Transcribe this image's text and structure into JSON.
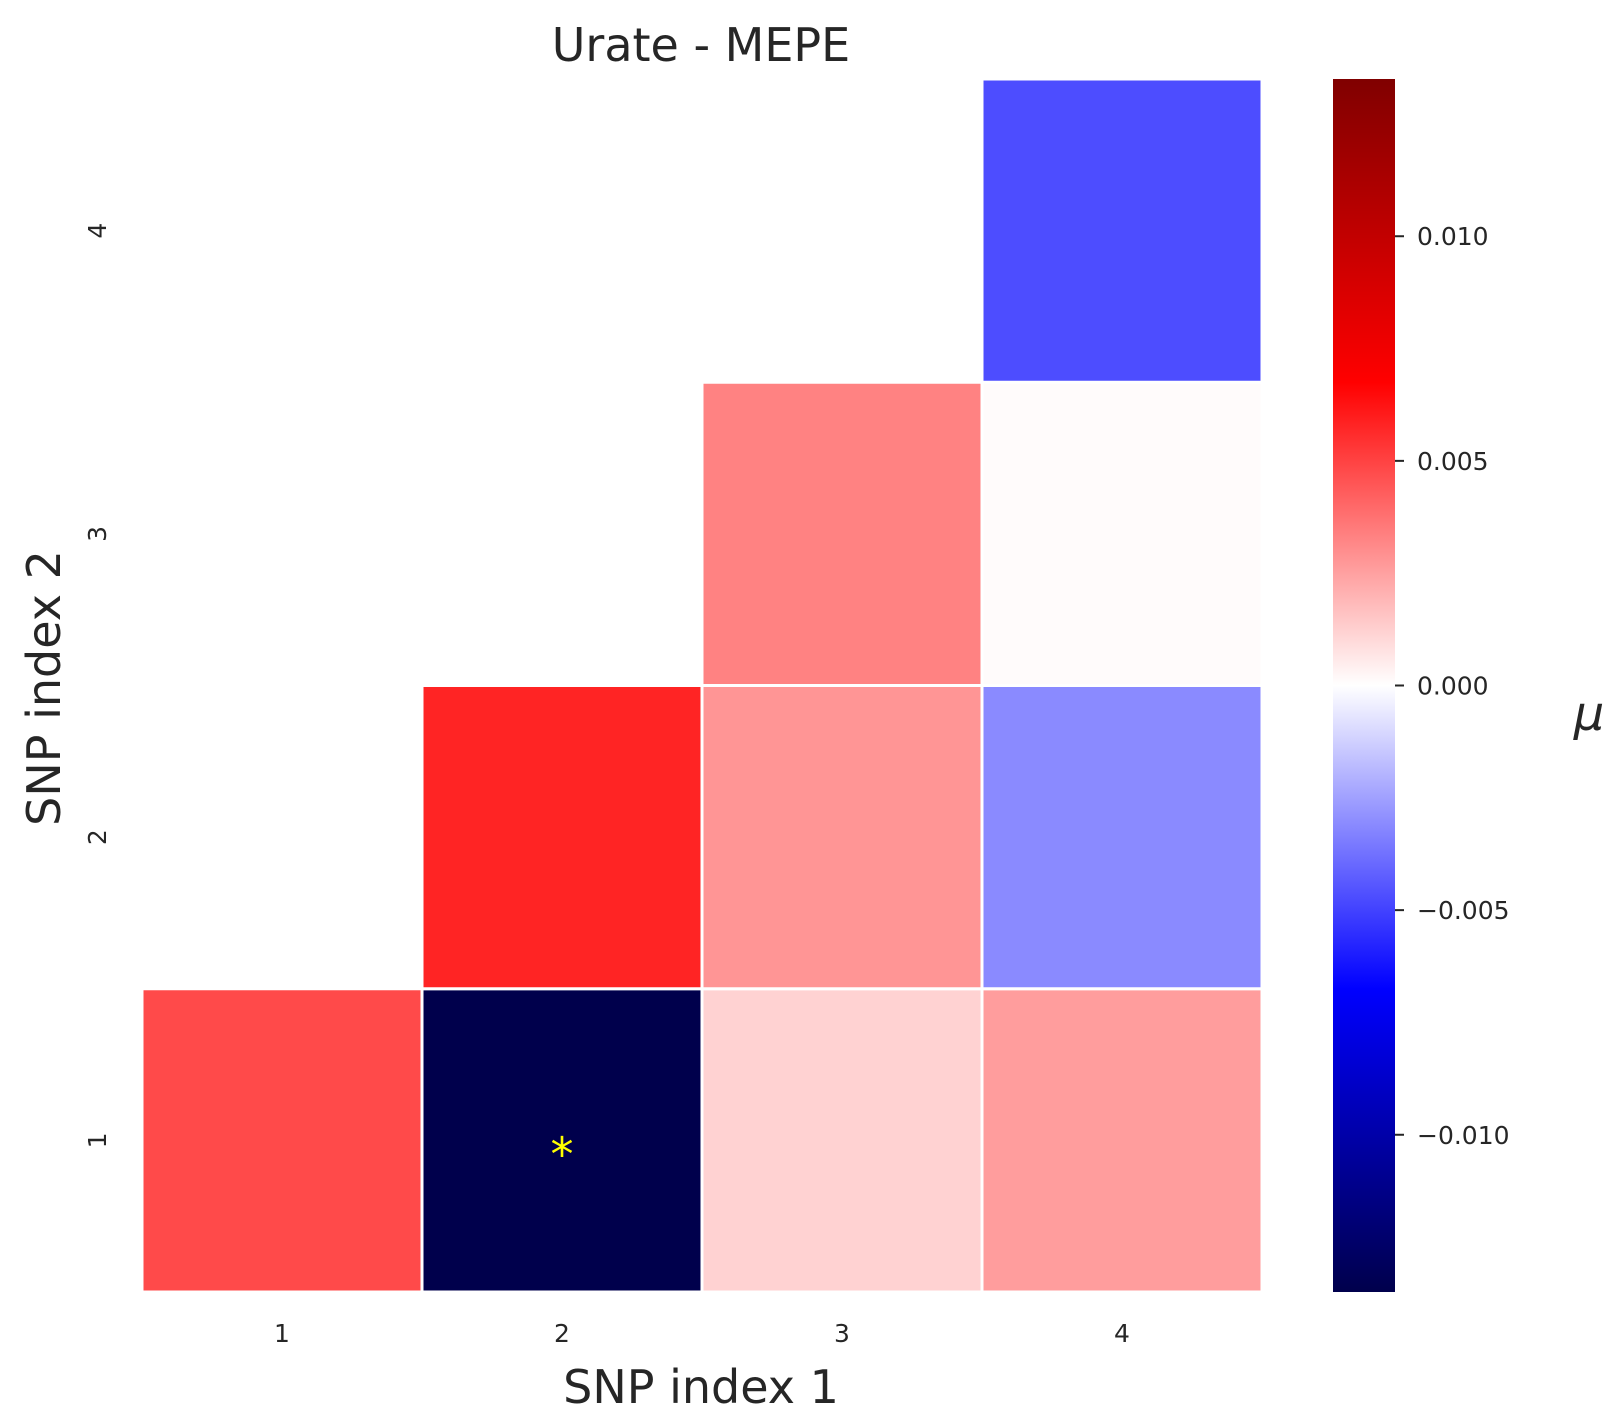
{
  "chart_data": {
    "type": "heatmap",
    "title": "Urate - MEPE",
    "xlabel": "SNP index 1",
    "ylabel": "SNP index 2",
    "x_categories": [
      "1",
      "2",
      "3",
      "4"
    ],
    "y_categories": [
      "1",
      "2",
      "3",
      "4"
    ],
    "cells": [
      {
        "x": "1",
        "y": "1",
        "value": 0.0048,
        "marker": ""
      },
      {
        "x": "2",
        "y": "1",
        "value": -0.0135,
        "marker": "*"
      },
      {
        "x": "3",
        "y": "1",
        "value": 0.0012,
        "marker": ""
      },
      {
        "x": "4",
        "y": "1",
        "value": 0.0026,
        "marker": ""
      },
      {
        "x": "2",
        "y": "2",
        "value": 0.0058,
        "marker": ""
      },
      {
        "x": "3",
        "y": "2",
        "value": 0.0028,
        "marker": ""
      },
      {
        "x": "4",
        "y": "2",
        "value": -0.0031,
        "marker": ""
      },
      {
        "x": "3",
        "y": "3",
        "value": 0.0033,
        "marker": ""
      },
      {
        "x": "4",
        "y": "3",
        "value": 0.0001,
        "marker": ""
      },
      {
        "x": "4",
        "y": "4",
        "value": -0.0047,
        "marker": ""
      }
    ],
    "colorbar": {
      "label": "μ",
      "colormap": "seismic",
      "range": [
        -0.0135,
        0.0135
      ],
      "ticks": [
        0.01,
        0.005,
        0.0,
        -0.005,
        -0.01
      ],
      "tick_labels": [
        "0.010",
        "0.005",
        "0.000",
        "−0.005",
        "−0.010"
      ]
    },
    "marker_color": "#ffff00",
    "grid": false
  }
}
